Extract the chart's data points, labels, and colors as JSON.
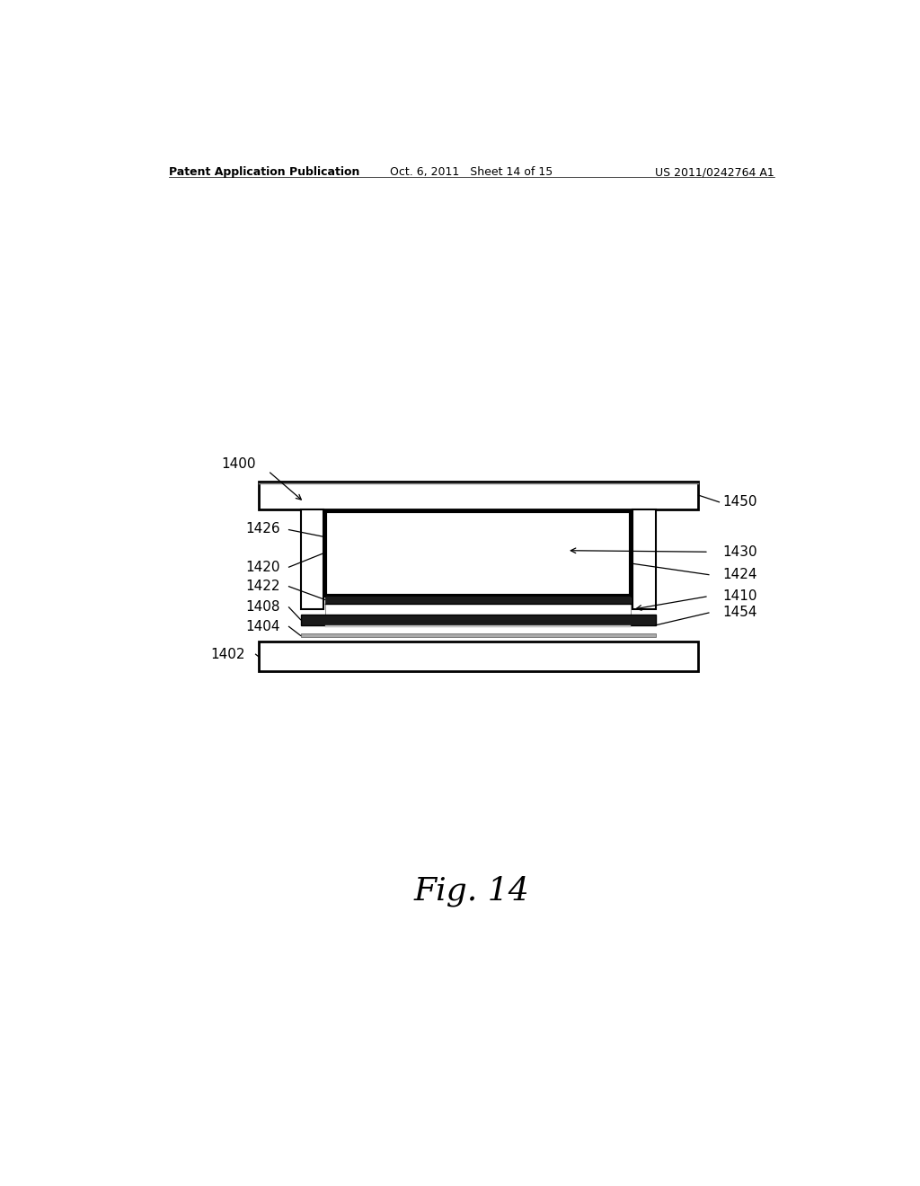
{
  "bg_color": "#ffffff",
  "line_color": "#000000",
  "fig_caption": "Fig. 14",
  "header_left": "Patent Application Publication",
  "header_center": "Oct. 6, 2011   Sheet 14 of 15",
  "header_right": "US 2011/0242764 A1"
}
